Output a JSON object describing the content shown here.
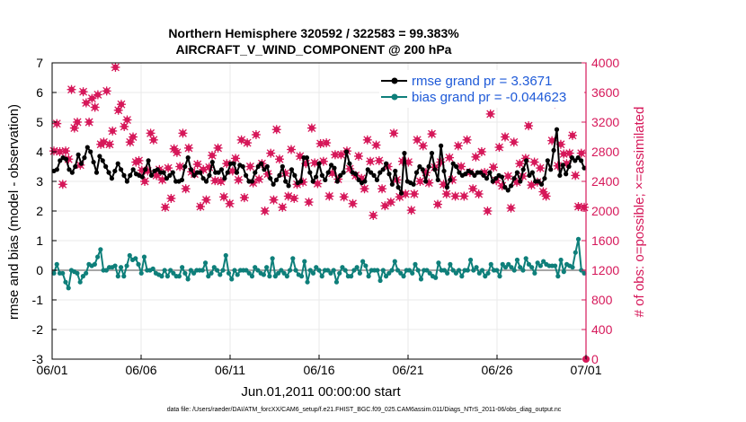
{
  "chart_data": {
    "type": "line",
    "title_line1": "Northern Hemisphere 320592 / 322583 = 99.383%",
    "title_line2": "AIRCRAFT_V_WIND_COMPONENT @ 200 hPa",
    "ylabel_left": "rmse and bias (model - observation)",
    "ylabel_right": "# of obs: o=possible; ×=assimilated",
    "xlabel": "Jun.01,2011 00:00:00 start",
    "footnote": "data file: /Users/raeder/DAI/ATM_forcXX/CAM6_setup/f.e21.FHIST_BGC.f09_025.CAM6assim.011/Diags_NTrS_2011-06/obs_diag_output.nc",
    "x_tick_labels": [
      "06/01",
      "06/06",
      "06/11",
      "06/16",
      "06/21",
      "06/26",
      "07/01"
    ],
    "x_range_days": [
      0,
      30
    ],
    "ylim_left": [
      -3,
      7
    ],
    "ylim_right": [
      0,
      4000
    ],
    "left_ticks": [
      "7",
      "6",
      "5",
      "4",
      "3",
      "2",
      "1",
      "0",
      "-1",
      "-2",
      "-3"
    ],
    "right_ticks": [
      "4000",
      "3600",
      "3200",
      "2800",
      "2400",
      "2000",
      "1600",
      "1200",
      "800",
      "400",
      "0"
    ],
    "colors": {
      "rmse": "#000000",
      "bias": "#0e7f7a",
      "obs": "#d6185a",
      "legend_text": "#1e5ad8",
      "zero_line": "#a6a6a6",
      "grid": "#eaeaea"
    },
    "series": [
      {
        "name": "rmse grand pr = 3.3671",
        "key": "rmse",
        "values": [
          3.35,
          3.4,
          3.7,
          3.8,
          3.75,
          3.4,
          3.3,
          3.5,
          3.9,
          3.6,
          3.8,
          4.15,
          4.0,
          3.65,
          3.3,
          3.85,
          3.7,
          3.5,
          3.3,
          3.1,
          3.35,
          3.6,
          3.4,
          3.2,
          3.0,
          3.2,
          3.4,
          3.25,
          3.2,
          3.15,
          3.4,
          3.7,
          3.2,
          3.35,
          3.4,
          3.3,
          3.3,
          3.1,
          3.2,
          3.3,
          3.0,
          3.0,
          3.05,
          3.5,
          3.8,
          3.4,
          3.2,
          3.3,
          3.3,
          3.1,
          3.0,
          3.2,
          3.65,
          3.3,
          3.3,
          3.4,
          3.1,
          3.3,
          3.6,
          3.6,
          3.3,
          3.55,
          3.5,
          3.2,
          3.0,
          3.0,
          3.3,
          3.5,
          3.6,
          3.4,
          3.5,
          3.1,
          2.9,
          3.05,
          3.2,
          3.5,
          3.0,
          2.85,
          3.4,
          3.2,
          2.95,
          3.0,
          3.8,
          3.8,
          3.3,
          3.0,
          3.15,
          3.6,
          3.2,
          3.05,
          3.3,
          3.55,
          3.45,
          3.0,
          3.2,
          3.3,
          4.0,
          3.6,
          3.3,
          3.25,
          3.05,
          2.95,
          3.0,
          3.4,
          3.3,
          3.2,
          3.05,
          3.3,
          3.4,
          3.6,
          3.25,
          2.9,
          3.35,
          2.8,
          2.6,
          3.95,
          3.0,
          2.95,
          2.9,
          3.3,
          3.5,
          3.4,
          3.0,
          3.5,
          3.95,
          3.4,
          3.05,
          4.2,
          3.35,
          2.8,
          3.05,
          3.6,
          3.5,
          3.3,
          3.2,
          3.25,
          3.35,
          3.3,
          3.2,
          3.3,
          3.3,
          3.2,
          3.1,
          3.3,
          3.0,
          3.1,
          3.2,
          3.15,
          2.8,
          2.7,
          2.85,
          3.1,
          3.3,
          3.0,
          3.4,
          3.7,
          3.2,
          3.3,
          3.0,
          3.0,
          2.9,
          3.1,
          3.7,
          3.4,
          4.05,
          4.75,
          3.2,
          3.55,
          3.25,
          3.5,
          3.8,
          3.7,
          3.8,
          3.7,
          3.45
        ]
      },
      {
        "name": "bias grand pr = -0.044623",
        "key": "bias",
        "values": [
          -0.1,
          0.2,
          -0.1,
          -0.1,
          -0.4,
          -0.6,
          0.0,
          -0.05,
          -0.1,
          -0.4,
          -0.2,
          -0.1,
          0.2,
          0.15,
          0.2,
          0.45,
          0.7,
          0.0,
          0.0,
          0.1,
          0.1,
          0.15,
          -0.2,
          0.1,
          -0.2,
          0.15,
          0.5,
          0.35,
          0.4,
          0.2,
          -0.1,
          0.45,
          0.0,
          0.0,
          0.05,
          -0.1,
          -0.15,
          -0.2,
          0.0,
          -0.2,
          0.0,
          -0.1,
          -0.2,
          -0.2,
          0.1,
          -0.1,
          -0.3,
          0.0,
          -0.1,
          0.0,
          0.0,
          0.0,
          0.25,
          -0.2,
          -0.1,
          0.1,
          0.0,
          -0.15,
          0.0,
          0.5,
          -0.1,
          -0.3,
          0.0,
          -0.15,
          0.0,
          0.0,
          0.0,
          -0.1,
          -0.2,
          0.1,
          0.0,
          -0.1,
          -0.15,
          0.1,
          -0.2,
          0.4,
          -0.2,
          -0.1,
          0.0,
          -0.1,
          -0.2,
          0.0,
          0.4,
          0.0,
          -0.15,
          -0.2,
          0.3,
          -0.4,
          0.0,
          -0.1,
          0.1,
          0.0,
          -0.2,
          0.0,
          0.0,
          -0.1,
          0.0,
          -0.4,
          -0.1,
          0.1,
          0.0,
          -0.2,
          -0.2,
          0.0,
          0.1,
          -0.1,
          0.3,
          0.15,
          -0.2,
          0.0,
          0.0,
          0.0,
          -0.35,
          0.0,
          -0.2,
          -0.1,
          0.0,
          0.3,
          0.0,
          -0.1,
          -0.2,
          0.0,
          0.0,
          -0.1,
          0.2,
          0.0,
          -0.3,
          0.0,
          0.0,
          -0.1,
          -0.2,
          -0.25,
          0.25,
          0.0,
          0.0,
          -0.1,
          0.2,
          0.0,
          -0.1,
          0.0,
          -0.2,
          0.0,
          0.0,
          0.35,
          0.0,
          0.1,
          -0.1,
          0.0,
          -0.2,
          -0.1,
          0.2,
          0.0,
          0.0,
          -0.2,
          0.2,
          0.1,
          0.2,
          0.1,
          0.0,
          0.35,
          0.1,
          0.0,
          0.4,
          0.2,
          0.1,
          -0.1,
          0.25,
          0.15,
          0.3,
          0.2,
          0.15,
          0.15,
          0.15,
          -0.2,
          0.35,
          -0.05,
          0.2,
          0.15,
          0.1,
          0.6,
          1.05,
          0.0,
          -0.1
        ]
      }
    ],
    "obs_counts_assimilated": [
      2810,
      3180,
      2800,
      2360,
      2810,
      2700,
      3640,
      3120,
      3200,
      2620,
      3610,
      3460,
      3200,
      3520,
      3400,
      3570,
      2900,
      2930,
      3620,
      2900,
      3080,
      3940,
      3360,
      3440,
      3140,
      3230,
      2930,
      3000,
      2660,
      2680,
      2550,
      2400,
      2540,
      3050,
      2960,
      2480,
      2560,
      2420,
      2050,
      2580,
      2170,
      2840,
      2790,
      2600,
      3050,
      2300,
      2850,
      2530,
      2500,
      2630,
      2060,
      2560,
      2150,
      2590,
      2750,
      2410,
      2850,
      2400,
      2190,
      2640,
      2100,
      2540,
      2710,
      2420,
      2960,
      2180,
      2920,
      2600,
      2380,
      3030,
      2430,
      2640,
      2000,
      2500,
      2780,
      2150,
      3100,
      2700,
      2050,
      2510,
      2200,
      2830,
      2170,
      2360,
      2740,
      2390,
      2640,
      2120,
      3120,
      2650,
      2370,
      2910,
      2670,
      2920,
      2200,
      2510,
      2760,
      2430,
      2760,
      2190,
      2810,
      2570,
      2100,
      2480,
      2740,
      2440,
      2300,
      2960,
      2670,
      1940,
      2890,
      2680,
      2300,
      2070,
      2600,
      2120,
      3050,
      2420,
      2190,
      2670,
      2230,
      2660,
      2010,
      2230,
      2960,
      2400,
      2880,
      2520,
      2380,
      3040,
      2590,
      2090,
      2660,
      2360,
      2230,
      2720,
      2420,
      2200,
      2880,
      2600,
      2200,
      2960,
      2520,
      2300,
      2730,
      2230,
      2800,
      2520,
      2000,
      3310,
      2590,
      2410,
      2860,
      2340,
      3000,
      2470,
      2040,
      2930,
      2390,
      2640,
      2470,
      2710,
      3150,
      2350,
      2660,
      2390,
      2580,
      2260,
      2200,
      3580,
      2950,
      3450,
      2610,
      2900,
      2770,
      2640,
      2780,
      3020,
      2480,
      2060,
      2780,
      2050
    ]
  },
  "legend": [
    {
      "label": "rmse grand pr = 3.3671",
      "color": "#000000"
    },
    {
      "label": "bias grand pr = -0.044623",
      "color": "#0e7f7a"
    }
  ]
}
